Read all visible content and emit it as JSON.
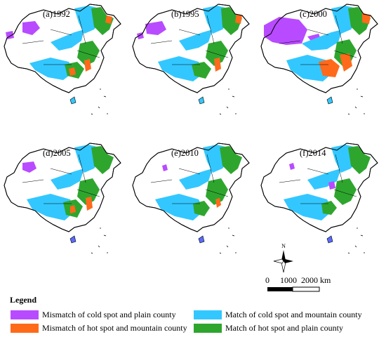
{
  "panels": [
    {
      "label": "(a)1992"
    },
    {
      "label": "(b)1995"
    },
    {
      "label": "(c)2000"
    },
    {
      "label": "(d)2005"
    },
    {
      "label": "(e)2010"
    },
    {
      "label": "(f)2014"
    }
  ],
  "compass_letter": "N",
  "scale": {
    "zero": "0",
    "mid": "1000",
    "end": "2000",
    "unit": "km"
  },
  "legend": {
    "title": "Legend",
    "items": [
      {
        "label": "Mismatch of cold spot and plain county",
        "color": "#b84bff"
      },
      {
        "label": "Match of cold spot and mountain county",
        "color": "#33c7ff"
      },
      {
        "label": "Mismatch of hot spot and mountain county",
        "color": "#ff6a1a"
      },
      {
        "label": "Match of hot spot and plain county",
        "color": "#2ea62e"
      }
    ]
  }
}
